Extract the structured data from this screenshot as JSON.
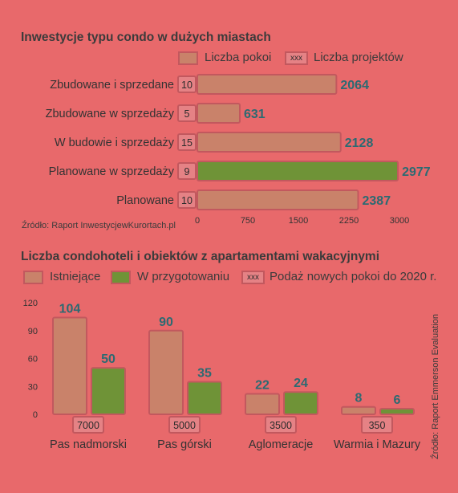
{
  "chart_data": [
    {
      "type": "bar",
      "orientation": "horizontal",
      "title": "Inwestycje typu condo w dużych miastach",
      "categories": [
        "Zbudowane i sprzedane",
        "Zbudowane  w sprzedaży",
        "W budowie i sprzedaży",
        "Planowane w sprzedaży",
        "Planowane"
      ],
      "series": [
        {
          "name": "Liczba pokoi",
          "values": [
            2064,
            631,
            2128,
            2977,
            2387
          ]
        },
        {
          "name": "Liczba projektów",
          "values": [
            10,
            5,
            15,
            9,
            10
          ]
        }
      ],
      "highlight_index": 3,
      "xlim": [
        0,
        3000
      ],
      "xticks": [
        0,
        750,
        1500,
        2250,
        3000
      ],
      "legend": {
        "swatch_label": "xxx",
        "position": "top"
      },
      "source": "Źródło: Raport InwestycjewKurortach.pl",
      "colors": {
        "bar": "#c9826a",
        "highlight": "#6f9337",
        "border": "#c2585e",
        "value_label": "#2c6a72"
      }
    },
    {
      "type": "bar",
      "orientation": "vertical",
      "title": "Liczba condohoteli i obiektów z apartamentami wakacyjnymi",
      "categories": [
        "Pas nadmorski",
        "Pas górski",
        "Aglomeracje",
        "Warmia i Mazury"
      ],
      "series": [
        {
          "name": "Istniejące",
          "values": [
            104,
            90,
            22,
            8
          ]
        },
        {
          "name": "W przygotowaniu",
          "values": [
            50,
            35,
            24,
            6
          ]
        },
        {
          "name": "Podaż nowych pokoi do 2020 r.",
          "values": [
            7000,
            5000,
            3500,
            350
          ]
        }
      ],
      "ylim": [
        0,
        120
      ],
      "yticks": [
        0,
        30,
        60,
        90,
        120
      ],
      "legend": {
        "swatch_label": "xxx",
        "position": "top"
      },
      "source": "Źródło: Raport Emmerson Evaluation",
      "colors": {
        "existing": "#c9826a",
        "planned": "#6f9337",
        "border": "#c2585e",
        "value_label": "#2c6a72"
      }
    }
  ]
}
